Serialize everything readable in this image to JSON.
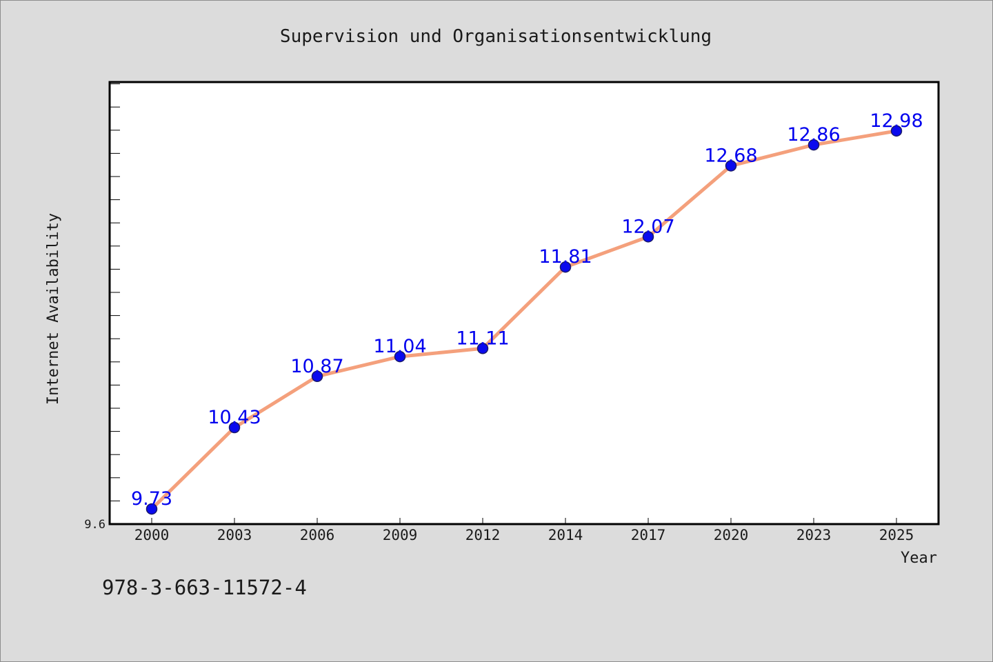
{
  "chart_data": {
    "type": "line",
    "title": "Supervision und Organisationsentwicklung",
    "xlabel": "Year",
    "ylabel": "Internet Availability",
    "categories": [
      "2000",
      "2003",
      "2006",
      "2009",
      "2012",
      "2014",
      "2017",
      "2020",
      "2023",
      "2025"
    ],
    "series": [
      {
        "values": [
          9.73,
          10.43,
          10.87,
          11.04,
          11.11,
          11.81,
          12.07,
          12.68,
          12.86,
          12.98
        ],
        "data_labels": [
          "9.73",
          "10.43",
          "10.87",
          "11.04",
          "11.11",
          "11.81",
          "12.07",
          "12.68",
          "12.86",
          "12.98"
        ]
      }
    ],
    "ylim": [
      9.6,
      13.4
    ],
    "y_tick_labels": [
      "9.6"
    ],
    "grid": false,
    "legend": "none",
    "colors": {
      "line": "#f4a07c",
      "marker": "#0a0aee",
      "marker_edge": "#1a1a6a",
      "label": "#0000ee",
      "plot_bg": "#ffffff",
      "figure_bg": "#dcdcdc"
    }
  },
  "footer": {
    "isbn": "978-3-663-11572-4"
  }
}
